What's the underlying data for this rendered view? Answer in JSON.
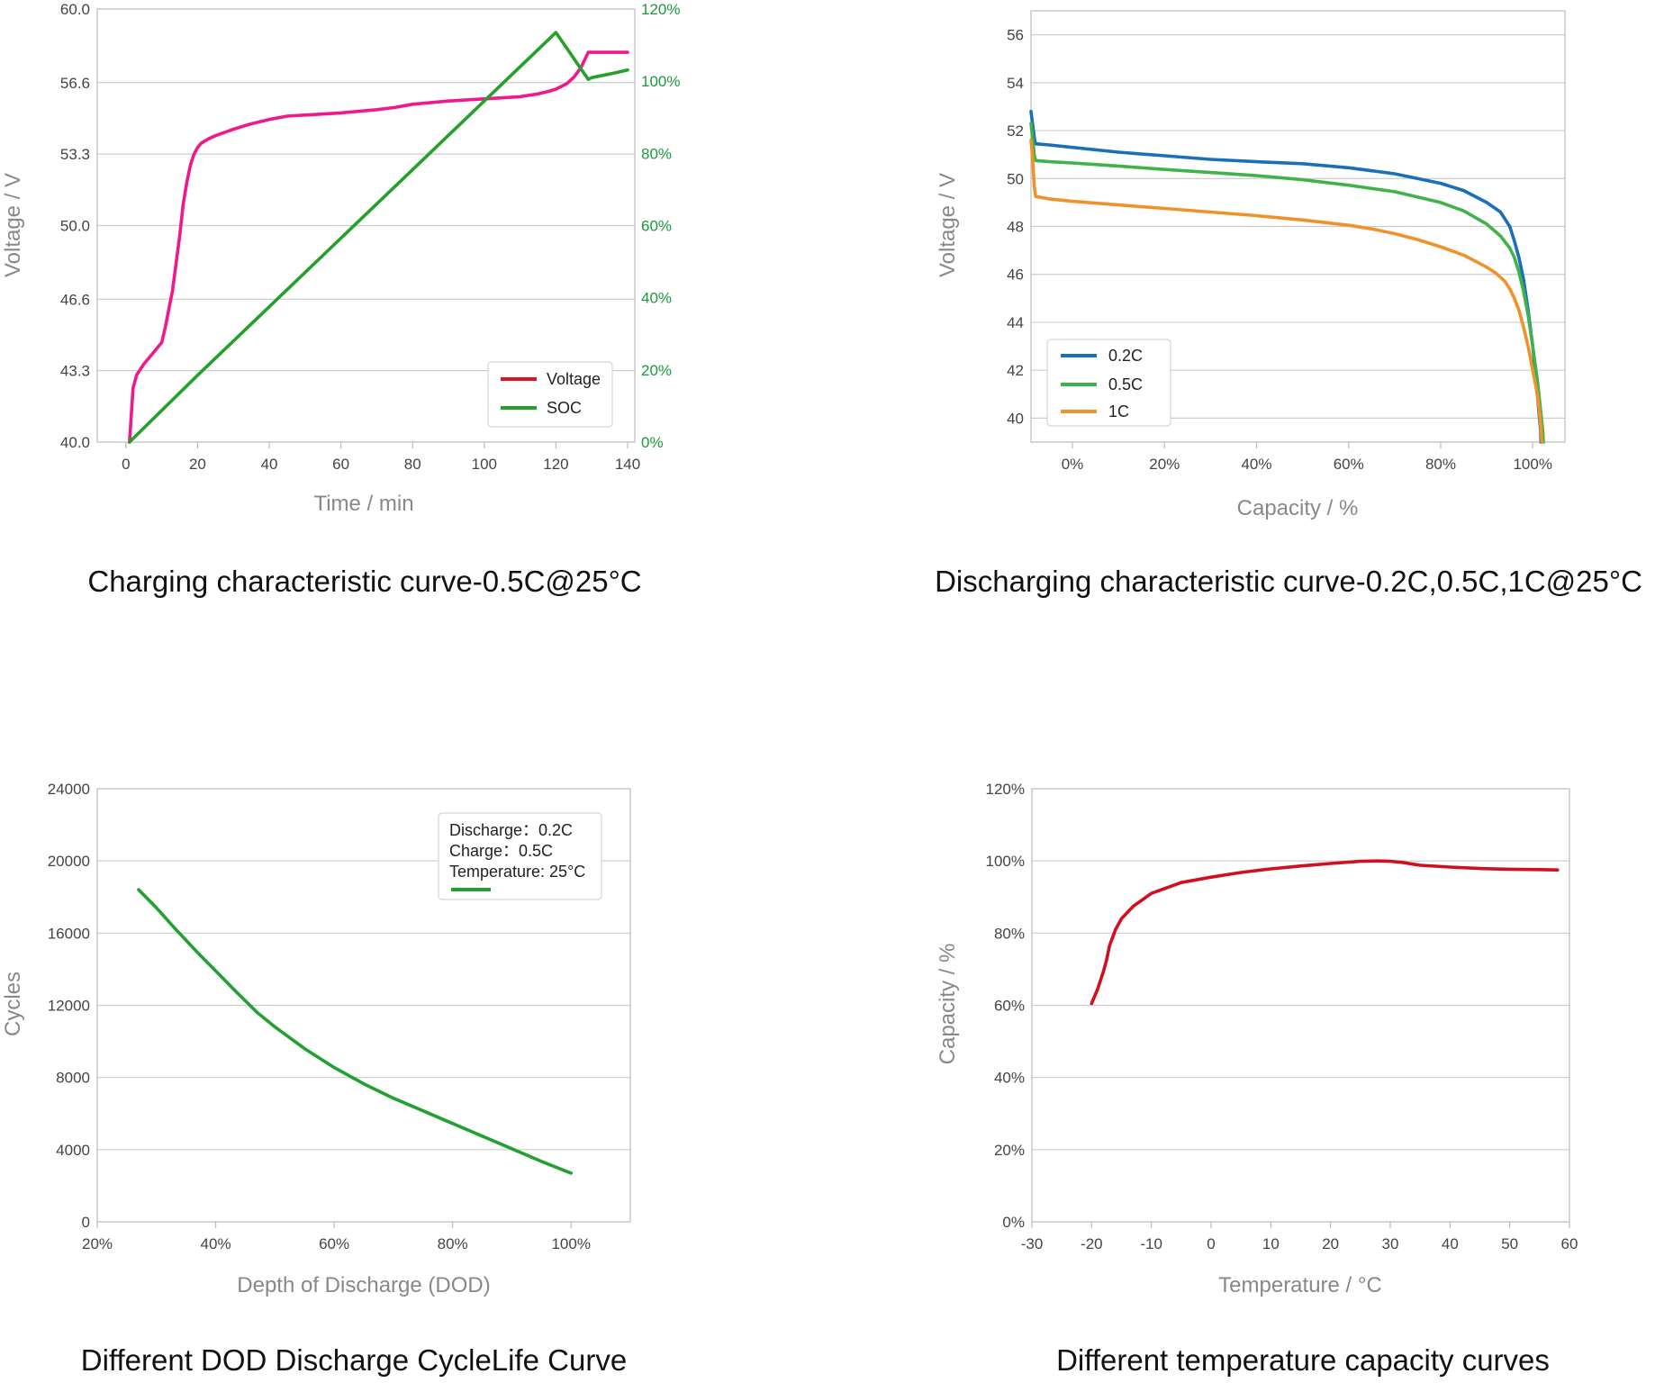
{
  "chart_data": [
    {
      "type": "line",
      "title": "Charging characteristic curve-0.5C@25°C",
      "xlabel": "Time / min",
      "ylabel": "Voltage / V",
      "xlim": [
        -8,
        142
      ],
      "xticks": [
        "0",
        "20",
        "40",
        "60",
        "80",
        "100",
        "120",
        "140"
      ],
      "ylim": [
        40.0,
        60.0
      ],
      "yticks": [
        "40.0",
        "43.3",
        "46.6",
        "50.0",
        "53.3",
        "56.6",
        "60.0"
      ],
      "y2lim": [
        0,
        120
      ],
      "y2ticks": [
        "0%",
        "20%",
        "40%",
        "60%",
        "80%",
        "100%",
        "120%"
      ],
      "grid": true,
      "legend": "bottom-right",
      "colors": {
        "Voltage": "#ee1a8c",
        "SOC": "#25a02a",
        "Voltage_legend": "#e0141e"
      },
      "series": [
        {
          "name": "Voltage",
          "axis": "left",
          "x": [
            1,
            2,
            3,
            5,
            8,
            10,
            11,
            13,
            15,
            16,
            17,
            18,
            19,
            20,
            21,
            23,
            25,
            30,
            35,
            40,
            45,
            50,
            60,
            70,
            75,
            80,
            90,
            100,
            110,
            115,
            118,
            120,
            123,
            125,
            127,
            129,
            130,
            132,
            135,
            140
          ],
          "y": [
            40.0,
            42.5,
            43.1,
            43.6,
            44.2,
            44.6,
            45.3,
            47.0,
            49.5,
            51.0,
            52.0,
            52.8,
            53.3,
            53.6,
            53.8,
            54.0,
            54.15,
            54.45,
            54.7,
            54.9,
            55.05,
            55.1,
            55.2,
            55.35,
            55.45,
            55.6,
            55.75,
            55.85,
            55.95,
            56.08,
            56.2,
            56.3,
            56.55,
            56.85,
            57.3,
            58.0,
            58.0,
            58.0,
            58.0,
            58.0
          ]
        },
        {
          "name": "SOC",
          "axis": "right",
          "x": [
            1,
            20,
            40,
            60,
            80,
            100,
            120,
            129,
            130,
            135,
            140
          ],
          "y": [
            0,
            18.5,
            37.5,
            56.5,
            75.5,
            94.5,
            113.5,
            100.5,
            101,
            102,
            103.1
          ]
        }
      ]
    },
    {
      "type": "line",
      "title": "Discharging characteristic curve-0.2C,0.5C,1C@25°C",
      "xlabel": "Capacity / %",
      "ylabel": "Voltage / V",
      "xlim": [
        -9,
        107
      ],
      "xticks": [
        "0%",
        "20%",
        "40%",
        "60%",
        "80%",
        "100%"
      ],
      "ylim": [
        39,
        57
      ],
      "yticks": [
        "40",
        "42",
        "44",
        "46",
        "48",
        "50",
        "52",
        "54",
        "56"
      ],
      "grid": true,
      "legend": "bottom-left",
      "colors": {
        "0.2C": "#1a6fba",
        "0.5C": "#3fb24a",
        "1C": "#f0922a"
      },
      "series": [
        {
          "name": "0.2C",
          "x": [
            -9,
            -8.6,
            -8.2,
            -8,
            -5,
            0,
            10,
            20,
            30,
            40,
            50,
            60,
            70,
            80,
            85,
            90,
            93,
            95,
            96,
            97,
            98,
            99,
            100,
            101,
            101.7,
            101.8
          ],
          "y": [
            52.8,
            52.2,
            51.6,
            51.45,
            51.4,
            51.3,
            51.1,
            50.95,
            50.8,
            50.7,
            50.62,
            50.45,
            50.2,
            49.8,
            49.5,
            49.0,
            48.6,
            48.0,
            47.4,
            46.7,
            45.8,
            44.5,
            43.0,
            41.0,
            39.5,
            39
          ]
        },
        {
          "name": "0.5C",
          "x": [
            -9,
            -8.7,
            -8.3,
            -8,
            -5,
            0,
            10,
            20,
            30,
            40,
            50,
            60,
            70,
            80,
            85,
            90,
            93,
            95,
            96,
            97,
            98,
            99,
            100,
            101,
            101.5,
            102,
            102.2,
            102.3
          ],
          "y": [
            52.3,
            51.8,
            51.0,
            50.75,
            50.7,
            50.65,
            50.52,
            50.38,
            50.25,
            50.12,
            49.95,
            49.72,
            49.45,
            49.0,
            48.65,
            48.1,
            47.6,
            47.1,
            46.7,
            46.1,
            45.3,
            44.3,
            43.0,
            41.6,
            40.7,
            39.8,
            39.4,
            39
          ]
        },
        {
          "name": "1C",
          "x": [
            -9,
            -8.7,
            -8.3,
            -8,
            -5,
            0,
            10,
            20,
            30,
            40,
            50,
            60,
            65,
            70,
            75,
            80,
            85,
            90,
            92,
            94,
            95,
            96,
            97,
            98,
            99,
            100,
            101,
            101.5,
            101.8,
            102
          ],
          "y": [
            51.6,
            51.0,
            49.7,
            49.25,
            49.15,
            49.05,
            48.9,
            48.75,
            48.6,
            48.45,
            48.27,
            48.05,
            47.9,
            47.7,
            47.45,
            47.15,
            46.8,
            46.3,
            46.05,
            45.7,
            45.4,
            45.0,
            44.5,
            43.8,
            43.0,
            42.0,
            41.0,
            40.2,
            39.5,
            39
          ]
        }
      ]
    },
    {
      "type": "line",
      "title": "Different DOD Discharge CycleLife Curve",
      "xlabel": "Depth of Discharge (DOD)",
      "ylabel": "Cycles",
      "xlim": [
        20,
        110
      ],
      "xticks": [
        "20%",
        "40%",
        "60%",
        "80%",
        "100%"
      ],
      "ylim": [
        0,
        24000
      ],
      "yticks": [
        "0",
        "4000",
        "8000",
        "12000",
        "16000",
        "20000",
        "24000"
      ],
      "grid": true,
      "legend": "top-right",
      "legend_lines": [
        "Discharge：0.2C",
        "Charge：0.5C",
        "Temperature: 25°C"
      ],
      "colors": {
        "line": "#23a032"
      },
      "series": [
        {
          "name": "",
          "x": [
            27,
            30,
            33,
            37,
            40,
            43,
            47,
            50,
            55,
            60,
            65,
            70,
            75,
            80,
            85,
            90,
            95,
            100
          ],
          "y": [
            18400,
            17400,
            16300,
            14900,
            13900,
            12900,
            11600,
            10800,
            9600,
            8550,
            7650,
            6850,
            6150,
            5450,
            4750,
            4050,
            3350,
            2700
          ]
        }
      ]
    },
    {
      "type": "line",
      "title": "Different temperature capacity curves",
      "xlabel": "Temperature / °C",
      "ylabel": "Capacity / %",
      "xlim": [
        -30,
        60
      ],
      "xticks": [
        "-30",
        "-20",
        "-10",
        "0",
        "10",
        "20",
        "30",
        "40",
        "50",
        "60"
      ],
      "ylim": [
        0,
        120
      ],
      "yticks": [
        "0%",
        "20%",
        "40%",
        "60%",
        "80%",
        "100%",
        "120%"
      ],
      "grid": true,
      "colors": {
        "line": "#d0101e"
      },
      "series": [
        {
          "name": "",
          "x": [
            -20,
            -19,
            -18,
            -17.5,
            -17,
            -16,
            -15,
            -13,
            -10,
            -5,
            0,
            5,
            10,
            15,
            20,
            25,
            28,
            30,
            32,
            35,
            40,
            45,
            50,
            55,
            58
          ],
          "y": [
            60.5,
            64.5,
            69.5,
            72.5,
            76.5,
            81,
            84,
            87.5,
            91,
            94,
            95.5,
            96.8,
            97.8,
            98.6,
            99.3,
            99.9,
            100,
            99.9,
            99.6,
            98.8,
            98.3,
            97.9,
            97.7,
            97.6,
            97.5
          ]
        }
      ]
    }
  ]
}
